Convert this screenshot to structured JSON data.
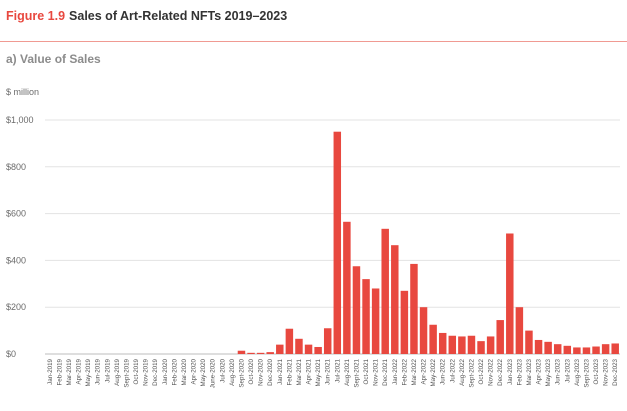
{
  "header": {
    "figure_label": "Figure 1.9",
    "title": "Sales of Art-Related NFTs 2019–2023"
  },
  "subtitle": "a) Value of Sales",
  "colors": {
    "bar": "#e8483f",
    "figure_label": "#e8483f",
    "rule": "#f09a92",
    "grid": "#e3e3e3"
  },
  "chart_data": {
    "type": "bar",
    "title": "Sales of Art-Related NFTs 2019–2023",
    "subtitle": "a) Value of Sales",
    "ylabel": "$ million",
    "ylim": [
      0,
      1000
    ],
    "yticks": [
      0,
      200,
      400,
      600,
      800,
      1000
    ],
    "ytick_labels": [
      "$0",
      "$200",
      "$400",
      "$600",
      "$800",
      "$1,000"
    ],
    "grid": true,
    "categories": [
      "Jan-2019",
      "Feb-2019",
      "Mar-2019",
      "Apr-2019",
      "May-2019",
      "Jun-2019",
      "Jul-2019",
      "Aug-2019",
      "Sept-2019",
      "Oct-2019",
      "Nov-2019",
      "Dec-2019",
      "Jan-2020",
      "Feb-2020",
      "Mar-2020",
      "Apr-2020",
      "May-2020",
      "June-2020",
      "Jul-2020",
      "Aug-2020",
      "Sept-2020",
      "Oct-2020",
      "Nov-2020",
      "Dec-2020",
      "Jan-2021",
      "Feb-2021",
      "Mar-2021",
      "Apr-2021",
      "May-2021",
      "Jun-2021",
      "Jul-2021",
      "Aug-2021",
      "Sept-2021",
      "Oct-2021",
      "Nov-2021",
      "Dec-2021",
      "Jan-2022",
      "Feb-2022",
      "Mar-2022",
      "Apr-2022",
      "May-2022",
      "Jun-2022",
      "Jul-2022",
      "Aug-2022",
      "Sept-2022",
      "Oct-2022",
      "Nov-2022",
      "Dec-2022",
      "Jan-2023",
      "Feb-2023",
      "Mar-2023",
      "Apr-2023",
      "May-2023",
      "Jun-2023",
      "Jul-2023",
      "Aug-2023",
      "Sept-2023",
      "Oct-2023",
      "Nov-2023",
      "Dec-2023"
    ],
    "values": [
      0,
      0,
      0,
      0,
      0,
      0,
      0,
      0,
      0,
      0,
      0,
      0,
      0,
      0,
      0,
      0,
      0,
      0,
      0,
      0,
      14,
      5,
      5,
      8,
      40,
      108,
      65,
      40,
      30,
      110,
      950,
      565,
      375,
      320,
      280,
      535,
      465,
      270,
      385,
      200,
      125,
      90,
      78,
      75,
      78,
      55,
      75,
      145,
      515,
      200,
      100,
      60,
      52,
      42,
      35,
      28,
      28,
      32,
      42,
      45
    ]
  }
}
